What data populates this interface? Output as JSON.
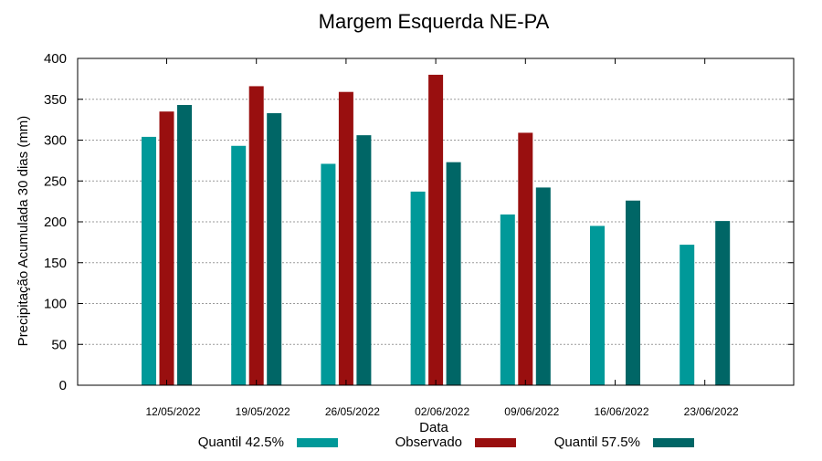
{
  "chart_data": {
    "type": "bar",
    "title": "Margem Esquerda NE-PA",
    "xlabel": "Data",
    "ylabel": "Precipitação Acumulada 30 dias (mm)",
    "ylim": [
      0,
      400
    ],
    "yticks": [
      0,
      50,
      100,
      150,
      200,
      250,
      300,
      350,
      400
    ],
    "grid": true,
    "legend_position": "bottom",
    "categories": [
      "12/05/2022",
      "19/05/2022",
      "26/05/2022",
      "02/06/2022",
      "09/06/2022",
      "16/06/2022",
      "23/06/2022"
    ],
    "series": [
      {
        "name": "Quantil 42.5%",
        "color": "#009999",
        "values": [
          304,
          293,
          271,
          237,
          209,
          195,
          172
        ]
      },
      {
        "name": "Observado",
        "color": "#990f0f",
        "values": [
          335,
          366,
          359,
          380,
          309,
          null,
          null
        ]
      },
      {
        "name": "Quantil 57.5%",
        "color": "#006666",
        "values": [
          343,
          333,
          306,
          273,
          242,
          226,
          201
        ]
      }
    ]
  }
}
